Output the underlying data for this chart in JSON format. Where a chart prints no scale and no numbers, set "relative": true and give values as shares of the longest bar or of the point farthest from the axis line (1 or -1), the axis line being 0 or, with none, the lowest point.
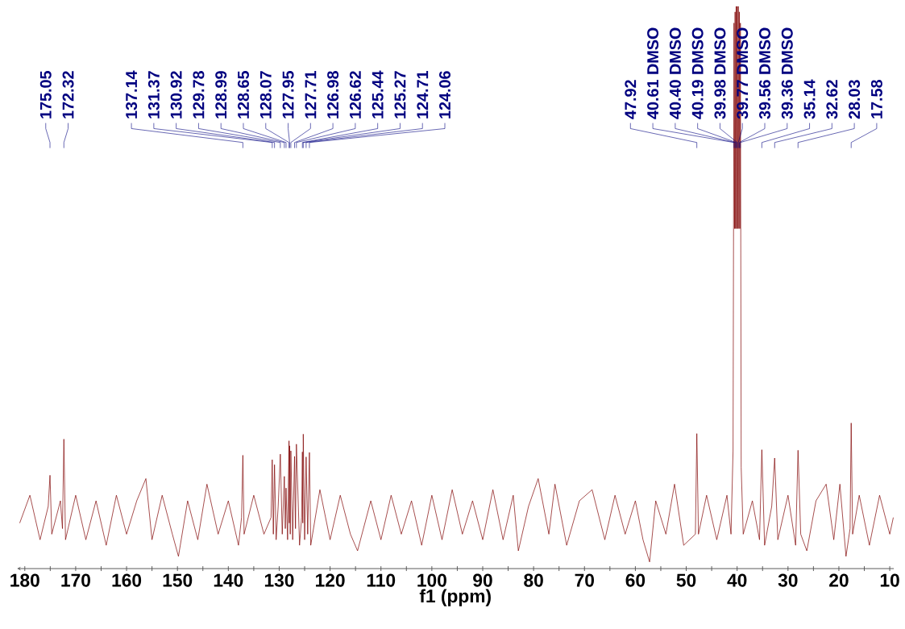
{
  "chart_data": {
    "type": "line",
    "relative": true,
    "color": "#800000",
    "xlabel": "f1 (ppm)",
    "xlim": [
      181.5,
      9.2
    ],
    "xticks": [
      180,
      {
        "value": 175,
        "label": null
      },
      170,
      {
        "value": 165,
        "label": null
      },
      160,
      {
        "value": 155,
        "label": null
      },
      150,
      {
        "value": 145,
        "label": null
      },
      140,
      {
        "value": 135,
        "label": null
      },
      130,
      {
        "value": 125,
        "label": null
      },
      120,
      {
        "value": 115,
        "label": null
      },
      110,
      {
        "value": 105,
        "label": null
      },
      100,
      {
        "value": 95,
        "label": null
      },
      90,
      {
        "value": 85,
        "label": null
      },
      80,
      {
        "value": 75,
        "label": null
      },
      70,
      {
        "value": 65,
        "label": null
      },
      60,
      {
        "value": 55,
        "label": null
      },
      50,
      {
        "value": 45,
        "label": null
      },
      40,
      {
        "value": 35,
        "label": null
      },
      30,
      {
        "value": 25,
        "label": null
      },
      20,
      {
        "value": 15,
        "label": null
      },
      10
    ],
    "x": [
      181,
      179,
      177,
      175.4,
      175.05,
      174.7,
      173,
      172.6,
      172.32,
      172.0,
      170,
      168,
      166,
      164,
      162,
      160,
      158,
      156.2,
      155,
      153,
      151,
      149.8,
      148,
      146,
      144.2,
      142,
      140,
      138,
      137.4,
      137.14,
      136.9,
      135,
      133,
      131.6,
      131.37,
      131.15,
      130.92,
      130.6,
      130.2,
      129.78,
      129.4,
      128.99,
      128.8,
      128.65,
      128.35,
      128.07,
      128.01,
      127.95,
      127.83,
      127.71,
      127.35,
      126.98,
      126.8,
      126.62,
      126.0,
      125.6,
      125.44,
      125.36,
      125.27,
      125.0,
      124.71,
      124.4,
      124.06,
      123.8,
      122,
      120,
      118,
      116,
      114.6,
      112,
      110,
      108,
      106,
      104,
      102,
      100,
      98,
      96,
      94,
      92,
      90,
      88,
      86,
      84,
      83,
      81,
      79.1,
      77,
      75.8,
      73.5,
      71,
      68.5,
      66,
      64,
      62,
      60,
      58.5,
      57.2,
      56,
      54,
      52.3,
      50.5,
      48.2,
      47.92,
      47.6,
      46,
      44,
      42,
      41.2,
      40.8,
      40.61,
      40.5,
      40.4,
      40.3,
      40.19,
      40.1,
      39.98,
      39.9,
      39.77,
      39.65,
      39.56,
      39.45,
      39.36,
      39.2,
      38.8,
      37,
      35.6,
      35.14,
      34.6,
      33.2,
      32.62,
      32.0,
      30,
      28.5,
      28.03,
      27.5,
      26.3,
      24.5,
      22.5,
      21,
      19.8,
      18.6,
      17.8,
      17.58,
      17.3,
      16,
      14,
      12,
      10,
      9.3
    ],
    "values": [
      0.07,
      0.12,
      0.04,
      0.1,
      0.156,
      0.05,
      0.11,
      0.06,
      0.221,
      0.04,
      0.12,
      0.04,
      0.11,
      0.03,
      0.12,
      0.05,
      0.11,
      0.15,
      0.04,
      0.12,
      0.05,
      0.01,
      0.11,
      0.04,
      0.14,
      0.05,
      0.11,
      0.03,
      0.08,
      0.192,
      0.05,
      0.12,
      0.05,
      0.08,
      0.184,
      0.05,
      0.175,
      0.04,
      0.1,
      0.194,
      0.05,
      0.154,
      0.06,
      0.133,
      0.04,
      0.218,
      0.07,
      0.209,
      0.05,
      0.2,
      0.04,
      0.19,
      0.06,
      0.212,
      0.03,
      0.08,
      0.198,
      0.07,
      0.23,
      0.04,
      0.189,
      0.05,
      0.197,
      0.03,
      0.13,
      0.04,
      0.12,
      0.05,
      0.02,
      0.11,
      0.04,
      0.12,
      0.05,
      0.11,
      0.03,
      0.12,
      0.04,
      0.13,
      0.05,
      0.11,
      0.04,
      0.13,
      0.04,
      0.12,
      0.02,
      0.1,
      0.15,
      0.05,
      0.14,
      0.03,
      0.11,
      0.13,
      0.04,
      0.12,
      0.05,
      0.11,
      0.04,
      0.0,
      0.11,
      0.05,
      0.14,
      0.03,
      0.05,
      0.231,
      0.05,
      0.12,
      0.04,
      0.12,
      0.05,
      0.2,
      0.97,
      0.6,
      0.99,
      0.6,
      1.0,
      0.6,
      1.0,
      0.6,
      1.0,
      0.6,
      0.99,
      0.6,
      0.97,
      0.17,
      0.05,
      0.11,
      0.04,
      0.202,
      0.03,
      0.1,
      0.187,
      0.04,
      0.12,
      0.03,
      0.201,
      0.05,
      0.02,
      0.11,
      0.14,
      0.04,
      0.14,
      0.01,
      0.06,
      0.25,
      0.05,
      0.12,
      0.03,
      0.12,
      0.05,
      0.08
    ],
    "annotations": [
      {
        "text": "175.05",
        "x": 175.05
      },
      {
        "text": "172.32",
        "x": 172.32
      },
      {
        "text": "137.14",
        "x": 137.14
      },
      {
        "text": "131.37",
        "x": 131.37
      },
      {
        "text": "130.92",
        "x": 130.92
      },
      {
        "text": "129.78",
        "x": 129.78
      },
      {
        "text": "128.99",
        "x": 128.99
      },
      {
        "text": "128.65",
        "x": 128.65
      },
      {
        "text": "128.07",
        "x": 128.07
      },
      {
        "text": "127.95",
        "x": 127.95
      },
      {
        "text": "127.71",
        "x": 127.71
      },
      {
        "text": "126.98",
        "x": 126.98
      },
      {
        "text": "126.62",
        "x": 126.62
      },
      {
        "text": "125.44",
        "x": 125.44
      },
      {
        "text": "125.27",
        "x": 125.27
      },
      {
        "text": "124.71",
        "x": 124.71
      },
      {
        "text": "124.06",
        "x": 124.06
      },
      {
        "text": "47.92",
        "x": 47.92
      },
      {
        "text": "40.61 DMSO",
        "x": 40.61
      },
      {
        "text": "40.40 DMSO",
        "x": 40.4
      },
      {
        "text": "40.19 DMSO",
        "x": 40.19
      },
      {
        "text": "39.98 DMSO",
        "x": 39.98
      },
      {
        "text": "39.77 DMSO",
        "x": 39.77
      },
      {
        "text": "39.56 DMSO",
        "x": 39.56
      },
      {
        "text": "39.36 DMSO",
        "x": 39.36
      },
      {
        "text": "35.14",
        "x": 35.14
      },
      {
        "text": "32.62",
        "x": 32.62
      },
      {
        "text": "28.03",
        "x": 28.03
      },
      {
        "text": "17.58",
        "x": 17.58
      }
    ]
  }
}
